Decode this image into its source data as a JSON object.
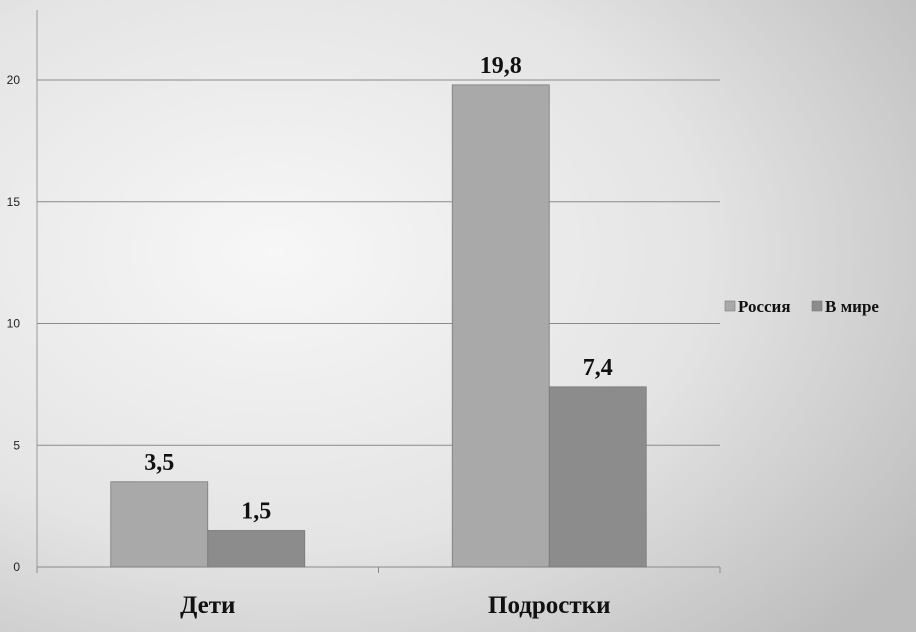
{
  "chart_data": {
    "type": "bar",
    "categories": [
      "Дети",
      "Подростки"
    ],
    "series": [
      {
        "name": "Россия",
        "values": [
          3.5,
          19.8
        ],
        "data_labels": [
          "3,5",
          "19,8"
        ],
        "color": "#a9a9a9"
      },
      {
        "name": "В мире",
        "values": [
          1.5,
          7.4
        ],
        "data_labels": [
          "1,5",
          "7,4"
        ],
        "color": "#8c8c8c"
      }
    ],
    "y_ticks": [
      "0",
      "5",
      "10",
      "15",
      "20"
    ],
    "ylim": [
      0,
      20
    ],
    "grid": true,
    "legend_position": "right",
    "title": "",
    "xlabel": "",
    "ylabel": ""
  }
}
